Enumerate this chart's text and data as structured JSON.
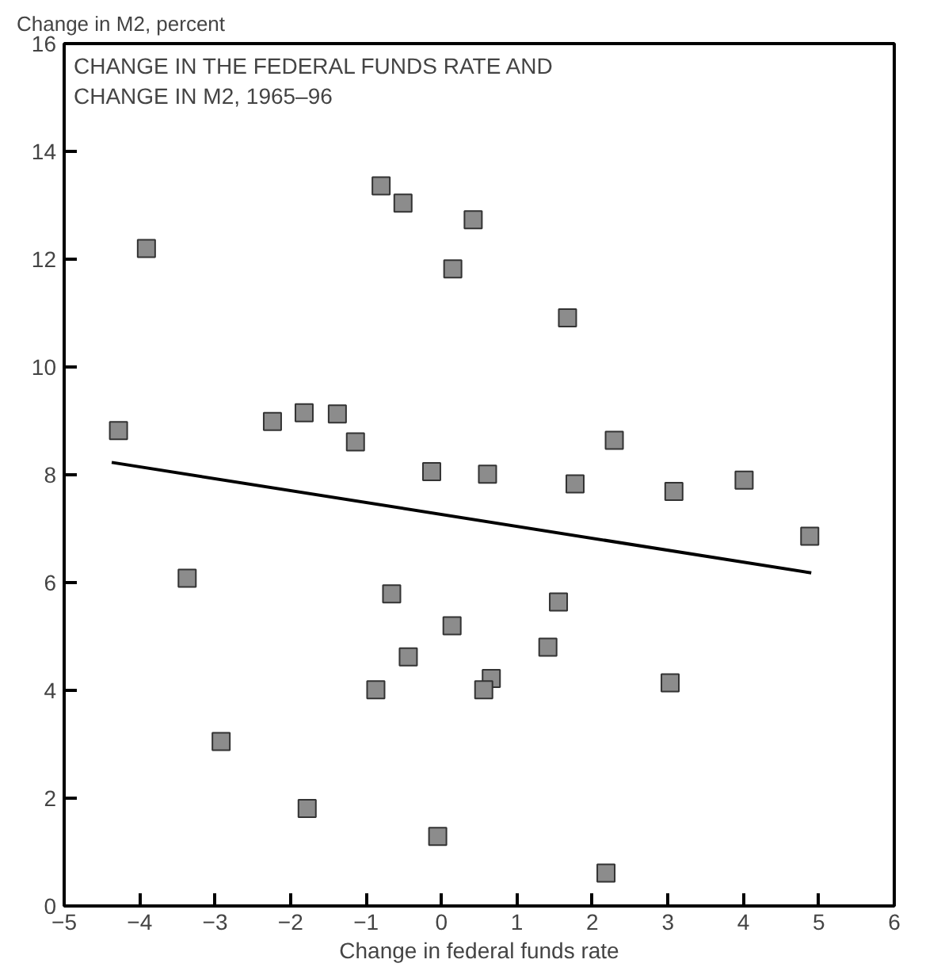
{
  "chart_data": {
    "type": "scatter",
    "title": "CHANGE IN THE FEDERAL FUNDS RATE AND\nCHANGE IN M2, 1965–96",
    "xlabel": "Change in federal funds rate",
    "ylabel": "Change in M2, percent",
    "xlim": [
      -5,
      6
    ],
    "xticks": [
      -5,
      -4,
      -3,
      -2,
      -1,
      0,
      1,
      2,
      3,
      4,
      5,
      6
    ],
    "ylim": [
      0,
      16
    ],
    "yticks": [
      0,
      2,
      4,
      6,
      8,
      10,
      12,
      14,
      16
    ],
    "grid": false,
    "marker": "square",
    "series": [
      {
        "color": "#8c8c8c",
        "x": [
          -4.28,
          -3.91,
          -2.24,
          -1.82,
          -1.38,
          -1.14,
          -0.8,
          -0.51,
          0.15,
          0.42,
          1.67,
          2.29,
          -0.13,
          -3.37,
          -0.66,
          0.14,
          -0.44,
          -0.87,
          -2.92,
          -1.78,
          -0.05,
          0.61,
          1.77,
          3.08,
          4.01,
          4.88,
          1.55,
          1.41,
          0.66,
          0.56,
          3.03,
          2.18
        ],
        "values": [
          8.82,
          12.2,
          8.99,
          9.15,
          9.13,
          8.61,
          13.36,
          13.04,
          11.82,
          12.73,
          10.91,
          8.64,
          8.06,
          6.08,
          5.79,
          5.2,
          4.62,
          4.01,
          3.05,
          1.81,
          1.29,
          8.01,
          7.83,
          7.69,
          7.9,
          6.86,
          5.64,
          4.8,
          4.22,
          4.01,
          4.14,
          0.61
        ]
      },
      {
        "type": "line",
        "color": "#000000",
        "marker": "none",
        "line_style": "solid",
        "x": [
          -4.37,
          4.9
        ],
        "values": [
          8.23,
          6.18
        ]
      }
    ]
  }
}
